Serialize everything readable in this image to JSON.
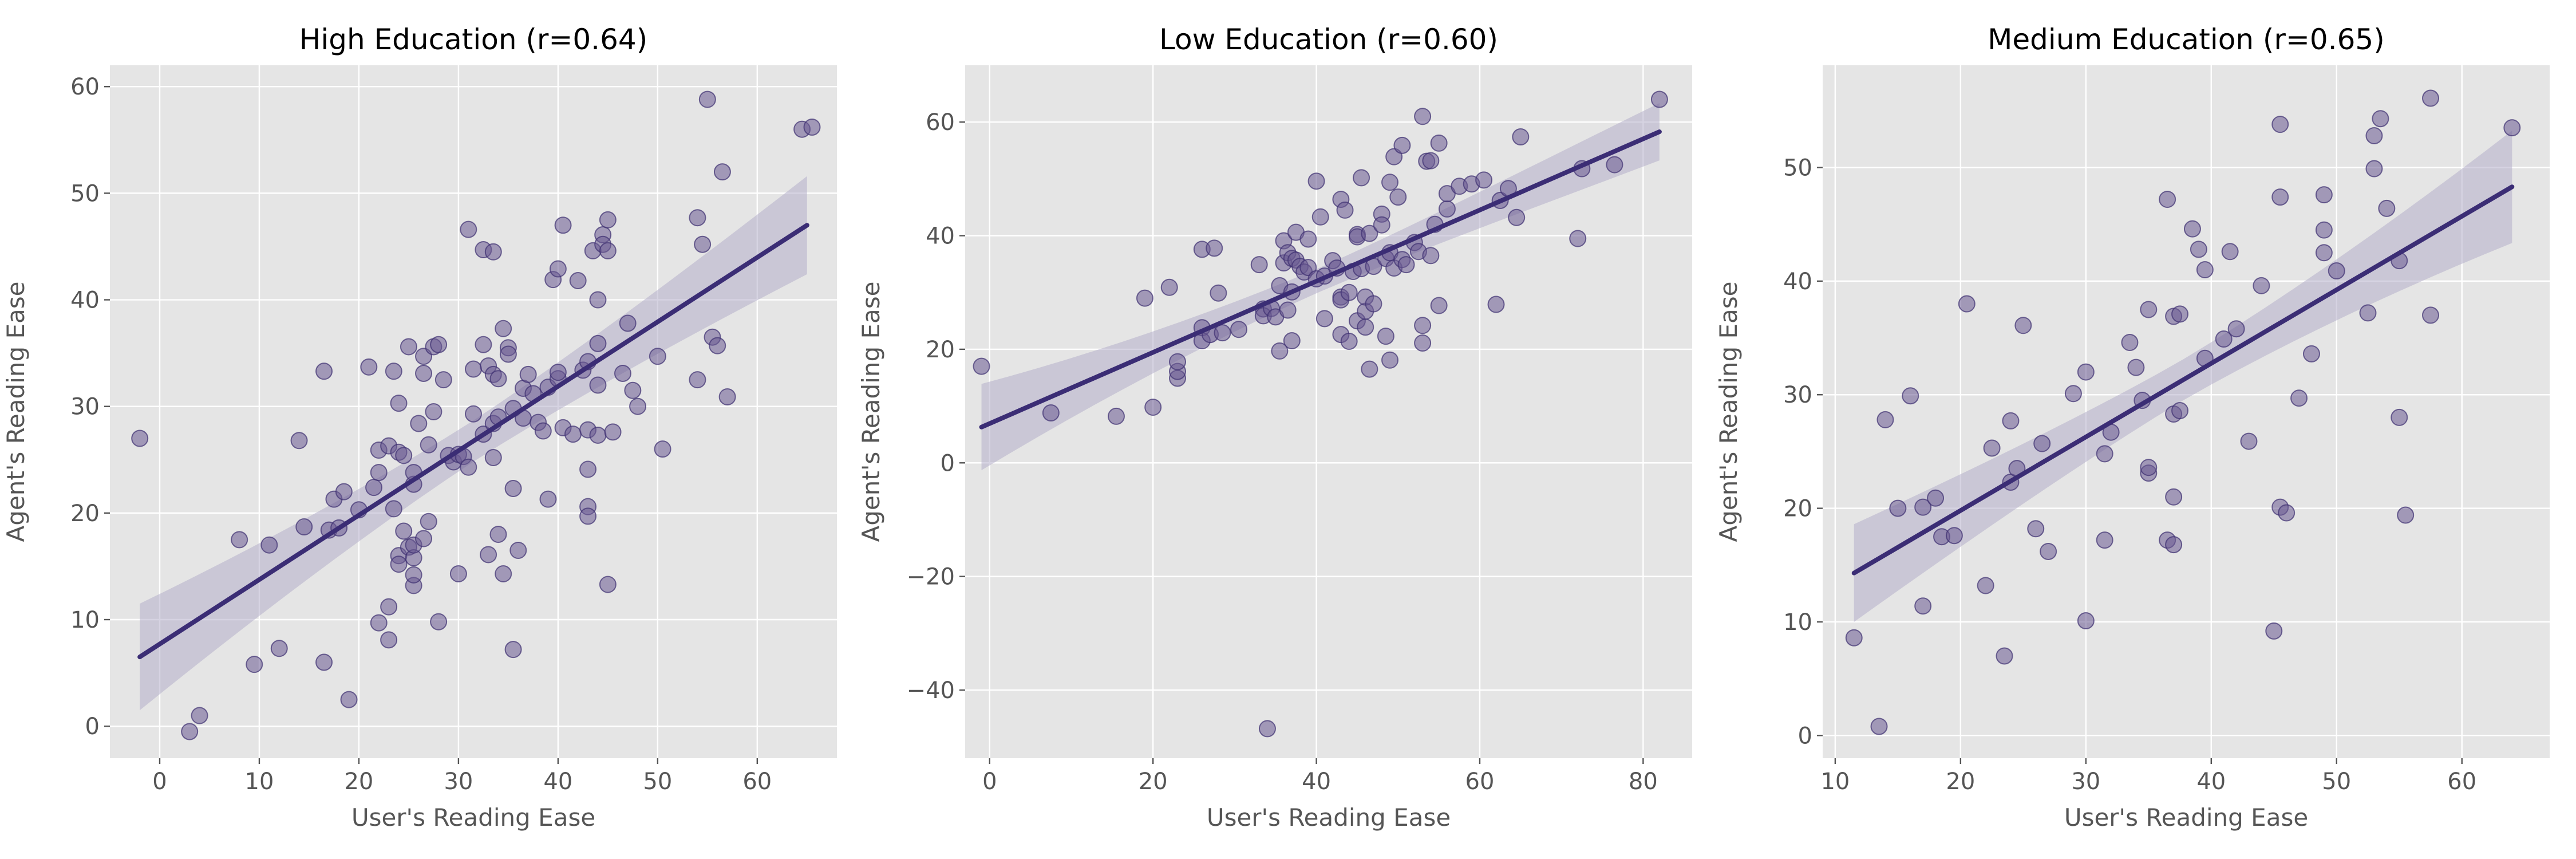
{
  "colors": {
    "background": "#ffffff",
    "panel": "#e5e5e5",
    "grid": "#ffffff",
    "point_fill": "#6a5a92",
    "point_fill_opacity": 0.55,
    "point_stroke": "#3d2f70",
    "line": "#3b2d75",
    "band": "#b4aecb",
    "text": "#555555",
    "title": "#000000"
  },
  "chart_data": [
    {
      "type": "scatter",
      "title": "High Education (r=0.64)",
      "xlabel": "User's Reading Ease",
      "ylabel": "Agent's Reading Ease",
      "xlim": [
        -5,
        68
      ],
      "ylim": [
        -3,
        62
      ],
      "xticks": [
        0,
        10,
        20,
        30,
        40,
        50,
        60
      ],
      "yticks": [
        0,
        10,
        20,
        30,
        40,
        50,
        60
      ],
      "grid": true,
      "regression": {
        "x": [
          -2,
          65
        ],
        "y": [
          6.5,
          47
        ],
        "ci_low_ends": [
          1.8,
          42.3
        ],
        "ci_high_ends": [
          11.8,
          51.5
        ]
      },
      "points": [
        [
          -2,
          27
        ],
        [
          3,
          -0.5
        ],
        [
          4,
          1
        ],
        [
          8,
          17.5
        ],
        [
          9.5,
          5.8
        ],
        [
          11,
          17
        ],
        [
          12,
          7.3
        ],
        [
          14,
          26.8
        ],
        [
          14.5,
          18.7
        ],
        [
          16.5,
          6
        ],
        [
          16.5,
          33.3
        ],
        [
          17,
          18.4
        ],
        [
          17.5,
          21.3
        ],
        [
          18,
          18.6
        ],
        [
          18.5,
          22
        ],
        [
          19,
          2.5
        ],
        [
          20,
          20.3
        ],
        [
          21,
          33.7
        ],
        [
          21.5,
          22.4
        ],
        [
          22,
          9.7
        ],
        [
          22,
          23.8
        ],
        [
          22,
          25.9
        ],
        [
          23,
          26.3
        ],
        [
          23,
          11.2
        ],
        [
          23,
          8.1
        ],
        [
          23.5,
          33.3
        ],
        [
          23.5,
          20.4
        ],
        [
          24,
          16
        ],
        [
          24,
          15.2
        ],
        [
          24,
          25.7
        ],
        [
          24,
          30.3
        ],
        [
          24.5,
          25.4
        ],
        [
          24.5,
          18.3
        ],
        [
          25,
          35.6
        ],
        [
          25,
          16.8
        ],
        [
          25.5,
          13.2
        ],
        [
          25.5,
          14.2
        ],
        [
          25.5,
          15.8
        ],
        [
          25.5,
          17
        ],
        [
          25.5,
          22.7
        ],
        [
          25.5,
          23.8
        ],
        [
          26,
          28.4
        ],
        [
          26.5,
          17.6
        ],
        [
          26.5,
          34.7
        ],
        [
          26.5,
          33.1
        ],
        [
          27,
          19.2
        ],
        [
          27,
          26.4
        ],
        [
          27.5,
          29.5
        ],
        [
          27.5,
          35.6
        ],
        [
          28,
          35.8
        ],
        [
          28,
          9.8
        ],
        [
          28.5,
          32.5
        ],
        [
          29,
          25.4
        ],
        [
          29.5,
          24.8
        ],
        [
          30,
          25.5
        ],
        [
          30,
          14.3
        ],
        [
          30.5,
          25.3
        ],
        [
          31,
          24.3
        ],
        [
          31,
          46.6
        ],
        [
          31.5,
          33.5
        ],
        [
          31.5,
          29.3
        ],
        [
          32.5,
          27.4
        ],
        [
          32.5,
          35.8
        ],
        [
          32.5,
          44.7
        ],
        [
          33,
          33.8
        ],
        [
          33,
          16.1
        ],
        [
          33.5,
          25.2
        ],
        [
          33.5,
          28.4
        ],
        [
          33.5,
          33
        ],
        [
          33.5,
          44.5
        ],
        [
          34,
          29
        ],
        [
          34,
          32.6
        ],
        [
          34,
          18
        ],
        [
          34.5,
          37.3
        ],
        [
          34.5,
          14.3
        ],
        [
          35,
          35.5
        ],
        [
          35,
          34.9
        ],
        [
          35.5,
          22.3
        ],
        [
          35.5,
          29.8
        ],
        [
          35.5,
          7.2
        ],
        [
          36,
          16.5
        ],
        [
          36.5,
          31.7
        ],
        [
          36.5,
          28.9
        ],
        [
          37,
          33
        ],
        [
          37.5,
          31.2
        ],
        [
          38,
          28.5
        ],
        [
          38.5,
          27.7
        ],
        [
          39,
          31.8
        ],
        [
          39,
          21.3
        ],
        [
          39.5,
          41.9
        ],
        [
          40,
          32.6
        ],
        [
          40,
          42.9
        ],
        [
          40,
          33.2
        ],
        [
          40.5,
          47
        ],
        [
          40.5,
          28
        ],
        [
          41.5,
          27.4
        ],
        [
          42,
          41.8
        ],
        [
          42.5,
          33.4
        ],
        [
          43,
          27.8
        ],
        [
          43,
          20.6
        ],
        [
          43,
          19.7
        ],
        [
          43,
          24.1
        ],
        [
          43,
          34.2
        ],
        [
          43.5,
          44.6
        ],
        [
          44,
          27.3
        ],
        [
          44,
          32
        ],
        [
          44,
          35.9
        ],
        [
          44,
          40
        ],
        [
          44.5,
          46.1
        ],
        [
          44.5,
          45.2
        ],
        [
          45,
          44.6
        ],
        [
          45,
          47.5
        ],
        [
          45,
          13.3
        ],
        [
          45.5,
          27.6
        ],
        [
          46.5,
          33.1
        ],
        [
          47,
          37.8
        ],
        [
          47.5,
          31.5
        ],
        [
          48,
          30
        ],
        [
          50,
          34.7
        ],
        [
          50.5,
          26
        ],
        [
          54,
          47.7
        ],
        [
          54,
          32.5
        ],
        [
          54.5,
          45.2
        ],
        [
          55,
          58.8
        ],
        [
          55.5,
          36.5
        ],
        [
          56,
          35.7
        ],
        [
          56.5,
          52
        ],
        [
          57,
          30.9
        ],
        [
          64.5,
          56
        ],
        [
          65.5,
          56.2
        ]
      ]
    },
    {
      "type": "scatter",
      "title": "Low Education (r=0.60)",
      "xlabel": "User's Reading Ease",
      "ylabel": "Agent's Reading Ease",
      "xlim": [
        -3,
        86
      ],
      "ylim": [
        -52,
        70
      ],
      "xticks": [
        0,
        20,
        40,
        60,
        80
      ],
      "yticks": [
        -40,
        -20,
        0,
        20,
        40,
        60
      ],
      "grid": true,
      "regression": {
        "x": [
          -1,
          82
        ],
        "y": [
          6.3,
          58.3
        ],
        "ci_low_ends": [
          -1.7,
          53.3
        ],
        "ci_high_ends": [
          13.5,
          63.4
        ]
      },
      "points": [
        [
          -1,
          17
        ],
        [
          7.5,
          8.8
        ],
        [
          15.5,
          8.2
        ],
        [
          19,
          29
        ],
        [
          20,
          9.8
        ],
        [
          22,
          30.9
        ],
        [
          23,
          14.9
        ],
        [
          23,
          16.1
        ],
        [
          23,
          17.8
        ],
        [
          26,
          23.8
        ],
        [
          26,
          21.5
        ],
        [
          26,
          37.6
        ],
        [
          27,
          22.6
        ],
        [
          27.5,
          37.8
        ],
        [
          28,
          29.9
        ],
        [
          28.5,
          22.9
        ],
        [
          30.5,
          23.5
        ],
        [
          33,
          34.9
        ],
        [
          33.5,
          27.1
        ],
        [
          33.5,
          25.9
        ],
        [
          34,
          -46.8
        ],
        [
          34.5,
          27.2
        ],
        [
          35,
          25.7
        ],
        [
          35.5,
          19.7
        ],
        [
          35.5,
          31.2
        ],
        [
          36,
          35.2
        ],
        [
          36,
          39.1
        ],
        [
          36.5,
          37
        ],
        [
          36.5,
          26.9
        ],
        [
          37,
          36
        ],
        [
          37,
          30.1
        ],
        [
          37,
          21.5
        ],
        [
          37.5,
          35.7
        ],
        [
          37.5,
          40.6
        ],
        [
          38,
          34.6
        ],
        [
          38.5,
          33.6
        ],
        [
          39,
          34.4
        ],
        [
          39,
          39.4
        ],
        [
          40,
          32.4
        ],
        [
          40,
          49.6
        ],
        [
          40.5,
          43.3
        ],
        [
          41,
          25.4
        ],
        [
          41,
          32.9
        ],
        [
          42,
          35.6
        ],
        [
          42.5,
          34.3
        ],
        [
          43,
          29.2
        ],
        [
          43,
          28.7
        ],
        [
          43,
          22.6
        ],
        [
          43,
          46.4
        ],
        [
          43.5,
          44.5
        ],
        [
          44,
          21.4
        ],
        [
          44,
          30
        ],
        [
          44.5,
          33.7
        ],
        [
          45,
          40.2
        ],
        [
          45,
          39.8
        ],
        [
          45,
          25
        ],
        [
          45.5,
          50.2
        ],
        [
          45.5,
          34.2
        ],
        [
          46,
          26.7
        ],
        [
          46,
          29.2
        ],
        [
          46,
          23.9
        ],
        [
          46.5,
          40.4
        ],
        [
          46.5,
          16.5
        ],
        [
          47,
          34.6
        ],
        [
          47,
          28
        ],
        [
          48,
          43.8
        ],
        [
          48,
          41.9
        ],
        [
          48.5,
          36
        ],
        [
          48.5,
          22.3
        ],
        [
          49,
          37
        ],
        [
          49,
          49.4
        ],
        [
          49,
          18.1
        ],
        [
          49.5,
          34.3
        ],
        [
          49.5,
          53.9
        ],
        [
          50,
          46.8
        ],
        [
          50.5,
          55.9
        ],
        [
          50.5,
          35.8
        ],
        [
          51,
          34.9
        ],
        [
          52,
          38.8
        ],
        [
          52.5,
          37.2
        ],
        [
          53,
          61
        ],
        [
          53,
          21.1
        ],
        [
          53,
          24.2
        ],
        [
          53.5,
          53.1
        ],
        [
          54,
          53.2
        ],
        [
          54,
          36.5
        ],
        [
          54.5,
          42
        ],
        [
          55,
          56.3
        ],
        [
          55,
          27.7
        ],
        [
          56,
          44.7
        ],
        [
          56,
          47.4
        ],
        [
          57.5,
          48.7
        ],
        [
          59,
          49.1
        ],
        [
          60.5,
          49.8
        ],
        [
          62,
          27.9
        ],
        [
          62.5,
          46.2
        ],
        [
          63.5,
          48.3
        ],
        [
          64.5,
          43.2
        ],
        [
          65,
          57.4
        ],
        [
          72,
          39.5
        ],
        [
          72.5,
          51.8
        ],
        [
          76.5,
          52.5
        ],
        [
          82,
          64
        ]
      ]
    },
    {
      "type": "scatter",
      "title": "Medium Education (r=0.65)",
      "xlabel": "User's Reading Ease",
      "ylabel": "Agent's Reading Ease",
      "xlim": [
        9,
        67
      ],
      "ylim": [
        -2,
        59
      ],
      "xticks": [
        10,
        20,
        30,
        40,
        50,
        60
      ],
      "yticks": [
        0,
        10,
        20,
        30,
        40,
        50
      ],
      "grid": true,
      "regression": {
        "x": [
          11.5,
          64
        ],
        "y": [
          14.3,
          48.3
        ],
        "ci_low_ends": [
          10,
          43.5
        ],
        "ci_high_ends": [
          18.6,
          53.4
        ]
      },
      "points": [
        [
          11.5,
          8.6
        ],
        [
          13.5,
          0.8
        ],
        [
          14,
          27.8
        ],
        [
          15,
          20
        ],
        [
          16,
          29.9
        ],
        [
          17,
          11.4
        ],
        [
          17,
          20.1
        ],
        [
          18,
          20.9
        ],
        [
          18.5,
          17.5
        ],
        [
          19.5,
          17.6
        ],
        [
          20.5,
          38
        ],
        [
          22,
          13.2
        ],
        [
          22.5,
          25.3
        ],
        [
          23.5,
          7
        ],
        [
          24,
          22.3
        ],
        [
          24,
          27.7
        ],
        [
          24.5,
          23.5
        ],
        [
          25,
          36.1
        ],
        [
          26,
          18.2
        ],
        [
          26.5,
          25.7
        ],
        [
          27,
          16.2
        ],
        [
          29,
          30.1
        ],
        [
          30,
          10.1
        ],
        [
          30,
          32
        ],
        [
          31.5,
          17.2
        ],
        [
          31.5,
          24.8
        ],
        [
          32,
          26.7
        ],
        [
          33.5,
          34.6
        ],
        [
          34,
          32.4
        ],
        [
          34.5,
          29.5
        ],
        [
          35,
          23.1
        ],
        [
          35,
          23.6
        ],
        [
          35,
          37.5
        ],
        [
          36.5,
          47.2
        ],
        [
          36.5,
          17.2
        ],
        [
          37,
          16.8
        ],
        [
          37,
          36.9
        ],
        [
          37,
          28.3
        ],
        [
          37.5,
          28.6
        ],
        [
          37.5,
          37.1
        ],
        [
          37,
          21
        ],
        [
          38.5,
          44.6
        ],
        [
          39,
          42.8
        ],
        [
          39.5,
          41
        ],
        [
          39.5,
          33.2
        ],
        [
          41,
          34.9
        ],
        [
          41.5,
          42.6
        ],
        [
          42,
          35.8
        ],
        [
          43,
          25.9
        ],
        [
          44,
          39.6
        ],
        [
          45,
          9.2
        ],
        [
          45.5,
          20.1
        ],
        [
          45.5,
          47.4
        ],
        [
          45.5,
          53.8
        ],
        [
          46,
          19.6
        ],
        [
          47,
          29.7
        ],
        [
          48,
          33.6
        ],
        [
          49,
          42.5
        ],
        [
          49,
          44.5
        ],
        [
          49,
          47.6
        ],
        [
          50,
          40.9
        ],
        [
          52.5,
          37.2
        ],
        [
          53,
          49.9
        ],
        [
          53,
          52.8
        ],
        [
          53.5,
          54.3
        ],
        [
          54,
          46.4
        ],
        [
          55,
          41.8
        ],
        [
          55,
          28
        ],
        [
          55.5,
          19.4
        ],
        [
          57.5,
          56.1
        ],
        [
          57.5,
          37
        ],
        [
          64,
          53.5
        ]
      ]
    }
  ]
}
